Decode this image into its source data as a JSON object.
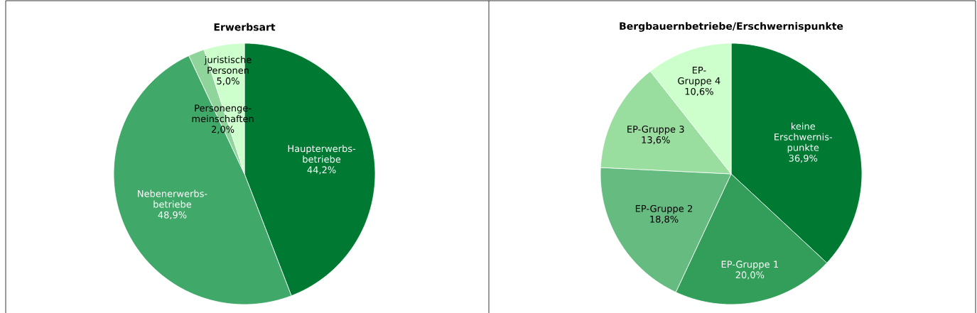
{
  "chart_data": [
    {
      "type": "pie",
      "title": "Erwerbsart",
      "categories": [
        "Haupterwerbs-betriebe",
        "Nebenerwerbs-betriebe",
        "Personenge-meinschaften",
        "juristische Personen"
      ],
      "values": [
        44.2,
        48.9,
        2.0,
        5.0
      ],
      "value_labels": [
        "44,2%",
        "48,9%",
        "2,0%",
        "5,0%"
      ],
      "colors": [
        "#007a33",
        "#40a868",
        "#8fd49a",
        "#ccffcc"
      ]
    },
    {
      "type": "pie",
      "title": "Bergbauernbetriebe/Erschwernispunkte",
      "categories": [
        "keine Erschwernis-punkte",
        "EP-Gruppe 1",
        "EP-Gruppe 2",
        "EP-Gruppe 3",
        "EP-Gruppe 4"
      ],
      "values": [
        36.9,
        20.0,
        18.8,
        13.6,
        10.6
      ],
      "value_labels": [
        "36,9%",
        "20,0%",
        "18,8%",
        "13,6%",
        "10,6%"
      ],
      "colors": [
        "#007a33",
        "#339e5a",
        "#66bb80",
        "#99dd9f",
        "#ccffcc"
      ]
    }
  ]
}
